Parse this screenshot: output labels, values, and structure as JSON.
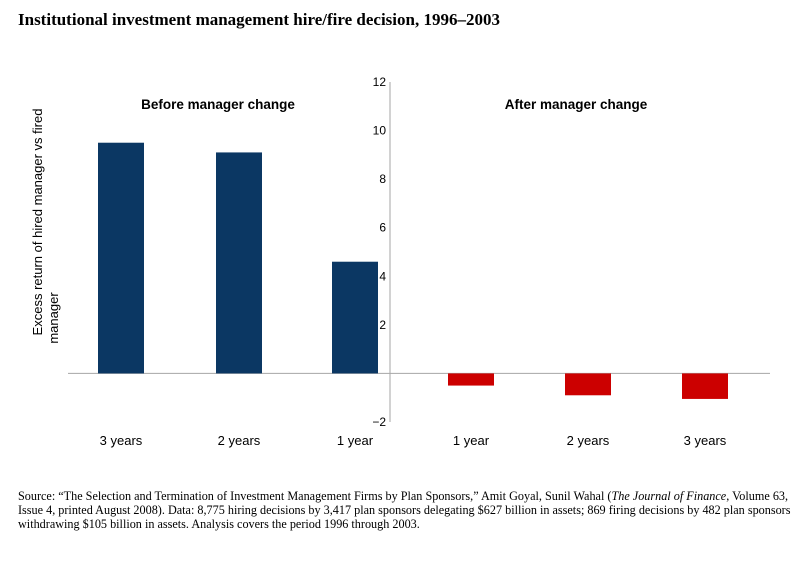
{
  "title": "Institutional investment management hire/fire decision, 1996–2003",
  "chart_data": {
    "type": "bar",
    "ylabel": "Excess return of hired manager vs fired manager",
    "ylim": [
      -2,
      12
    ],
    "yticks": [
      -2,
      2,
      4,
      6,
      8,
      10,
      12
    ],
    "panels": [
      {
        "label": "Before manager change",
        "color": "#0b3763",
        "categories": [
          "3 years",
          "2 years",
          "1 year"
        ],
        "values": [
          9.5,
          9.1,
          4.6
        ]
      },
      {
        "label": "After manager change",
        "color": "#cc0000",
        "categories": [
          "1 year",
          "2 years",
          "3 years"
        ],
        "values": [
          -0.5,
          -0.9,
          -1.05
        ]
      }
    ]
  },
  "source": {
    "prefix": "Source: “The Selection and Termination of Investment Management Firms by Plan Sponsors,” Amit Goyal, Sunil Wahal (",
    "journal": "The Journal of Finance",
    "suffix": ", Volume 63, Issue 4, printed August 2008). Data: 8,775 hiring decisions by 3,417 plan sponsors delegating $627 billion in assets; 869 firing decisions by 482 plan sponsors withdrawing $105 billion in assets. Analysis covers the period 1996 through 2003."
  }
}
